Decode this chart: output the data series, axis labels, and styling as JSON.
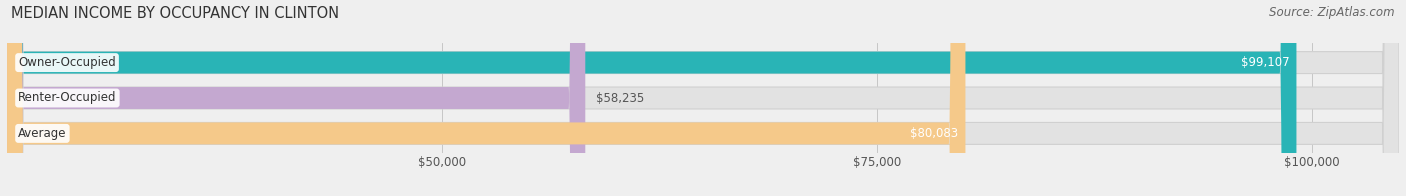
{
  "title": "MEDIAN INCOME BY OCCUPANCY IN CLINTON",
  "source": "Source: ZipAtlas.com",
  "categories": [
    "Owner-Occupied",
    "Renter-Occupied",
    "Average"
  ],
  "values": [
    99107,
    58235,
    80083
  ],
  "bar_colors": [
    "#29b4b6",
    "#c4a8d0",
    "#f5c98a"
  ],
  "value_labels": [
    "$99,107",
    "$58,235",
    "$80,083"
  ],
  "value_label_colors": [
    "#ffffff",
    "#555555",
    "#ffffff"
  ],
  "value_label_inside": [
    true,
    false,
    true
  ],
  "xlim_min": 25000,
  "xlim_max": 105000,
  "xticks": [
    50000,
    75000,
    100000
  ],
  "xticklabels": [
    "$50,000",
    "$75,000",
    "$100,000"
  ],
  "background_color": "#efefef",
  "bar_bg_color": "#e2e2e2",
  "bar_bg_edge_color": "#d0d0d0",
  "title_fontsize": 10.5,
  "source_fontsize": 8.5,
  "label_fontsize": 8.5,
  "tick_fontsize": 8.5,
  "bar_height": 0.62,
  "figsize": [
    14.06,
    1.96
  ],
  "dpi": 100
}
